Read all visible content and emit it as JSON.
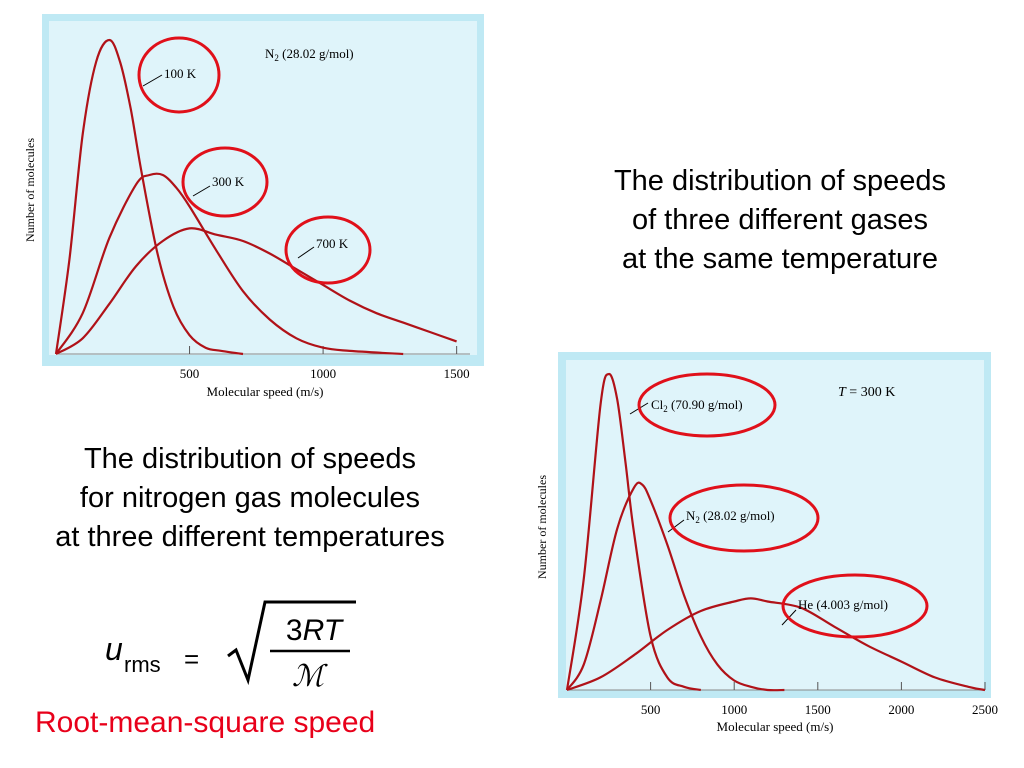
{
  "colors": {
    "panel_border": "#bfe9f4",
    "plot_bg": "#dff4fa",
    "curve": "#b01218",
    "circle": "#e0101a",
    "red_text": "#e8001a"
  },
  "chart_data": [
    {
      "type": "line",
      "annotation": "N2 (28.02 g/mol)",
      "xlabel": "Molecular speed (m/s)",
      "ylabel": "Number of molecules",
      "xlim": [
        0,
        1550
      ],
      "ylim": [
        0,
        1.0
      ],
      "xticks": [
        "500",
        "1000",
        "1500"
      ],
      "grid": false,
      "series": [
        {
          "name": "100 K",
          "x": [
            0,
            50,
            100,
            150,
            200,
            240,
            280,
            320,
            380,
            440,
            500,
            560,
            620,
            700
          ],
          "y": [
            0,
            0.3,
            0.7,
            0.93,
            1.0,
            0.93,
            0.78,
            0.58,
            0.32,
            0.15,
            0.06,
            0.02,
            0.01,
            0.0
          ]
        },
        {
          "name": "300 K",
          "x": [
            0,
            100,
            200,
            300,
            350,
            400,
            450,
            500,
            600,
            700,
            800,
            900,
            1000,
            1100,
            1300
          ],
          "y": [
            0,
            0.13,
            0.37,
            0.54,
            0.57,
            0.57,
            0.53,
            0.47,
            0.33,
            0.2,
            0.11,
            0.05,
            0.02,
            0.01,
            0.0
          ]
        },
        {
          "name": "700 K",
          "x": [
            0,
            100,
            200,
            300,
            400,
            500,
            600,
            700,
            800,
            900,
            1000,
            1100,
            1200,
            1300,
            1400,
            1500
          ],
          "y": [
            0,
            0.05,
            0.16,
            0.28,
            0.36,
            0.4,
            0.38,
            0.36,
            0.32,
            0.27,
            0.22,
            0.17,
            0.13,
            0.1,
            0.07,
            0.04
          ]
        }
      ]
    },
    {
      "type": "line",
      "annotation": "T = 300 K",
      "xlabel": "Molecular speed (m/s)",
      "ylabel": "Number of molecules",
      "xlim": [
        0,
        2500
      ],
      "ylim": [
        0,
        1.0
      ],
      "xticks": [
        "500",
        "1000",
        "1500",
        "2000",
        "2500"
      ],
      "grid": false,
      "series": [
        {
          "name": "Cl2 (70.90 g/mol)",
          "x": [
            0,
            100,
            200,
            250,
            300,
            350,
            400,
            500,
            600,
            700,
            800
          ],
          "y": [
            0,
            0.35,
            0.9,
            1.0,
            0.92,
            0.72,
            0.5,
            0.17,
            0.04,
            0.01,
            0.0
          ]
        },
        {
          "name": "N2 (28.02 g/mol)",
          "x": [
            0,
            100,
            200,
            300,
            400,
            450,
            500,
            600,
            700,
            800,
            900,
            1000,
            1100,
            1200,
            1300
          ],
          "y": [
            0,
            0.08,
            0.28,
            0.51,
            0.64,
            0.65,
            0.6,
            0.46,
            0.3,
            0.17,
            0.08,
            0.03,
            0.01,
            0.0,
            0.0
          ]
        },
        {
          "name": "He (4.003 g/mol)",
          "x": [
            0,
            200,
            400,
            600,
            800,
            1000,
            1100,
            1200,
            1400,
            1600,
            1800,
            2000,
            2200,
            2400,
            2500
          ],
          "y": [
            0,
            0.04,
            0.11,
            0.19,
            0.25,
            0.28,
            0.29,
            0.28,
            0.26,
            0.2,
            0.14,
            0.09,
            0.04,
            0.01,
            0.0
          ]
        }
      ]
    }
  ],
  "chart1_labels": {
    "annotation_main": "N",
    "annotation_sub": "2",
    "annotation_rest": " (28.02 g/mol)",
    "curve_labels": [
      "100 K",
      "300 K",
      "700 K"
    ]
  },
  "chart2_labels": {
    "annotation_italic": "T",
    "annotation_rest": " = 300 K",
    "cl2_main": "Cl",
    "cl2_sub": "2",
    "cl2_rest": " (70.90 g/mol)",
    "n2_main": "N",
    "n2_sub": "2",
    "n2_rest": " (28.02 g/mol)",
    "he_label": "He (4.003 g/mol)"
  },
  "captions": {
    "right": [
      "The distribution of speeds",
      "of three different gases",
      "at the same temperature"
    ],
    "left": [
      "The distribution of speeds",
      "for nitrogen gas molecules",
      "at three different temperatures"
    ]
  },
  "formula": {
    "u": "u",
    "sub": "rms",
    "equals": "=",
    "numerator": "3",
    "numerator_italic": "RT",
    "denominator": "ℳ"
  },
  "rms_label": "Root-mean-square speed"
}
